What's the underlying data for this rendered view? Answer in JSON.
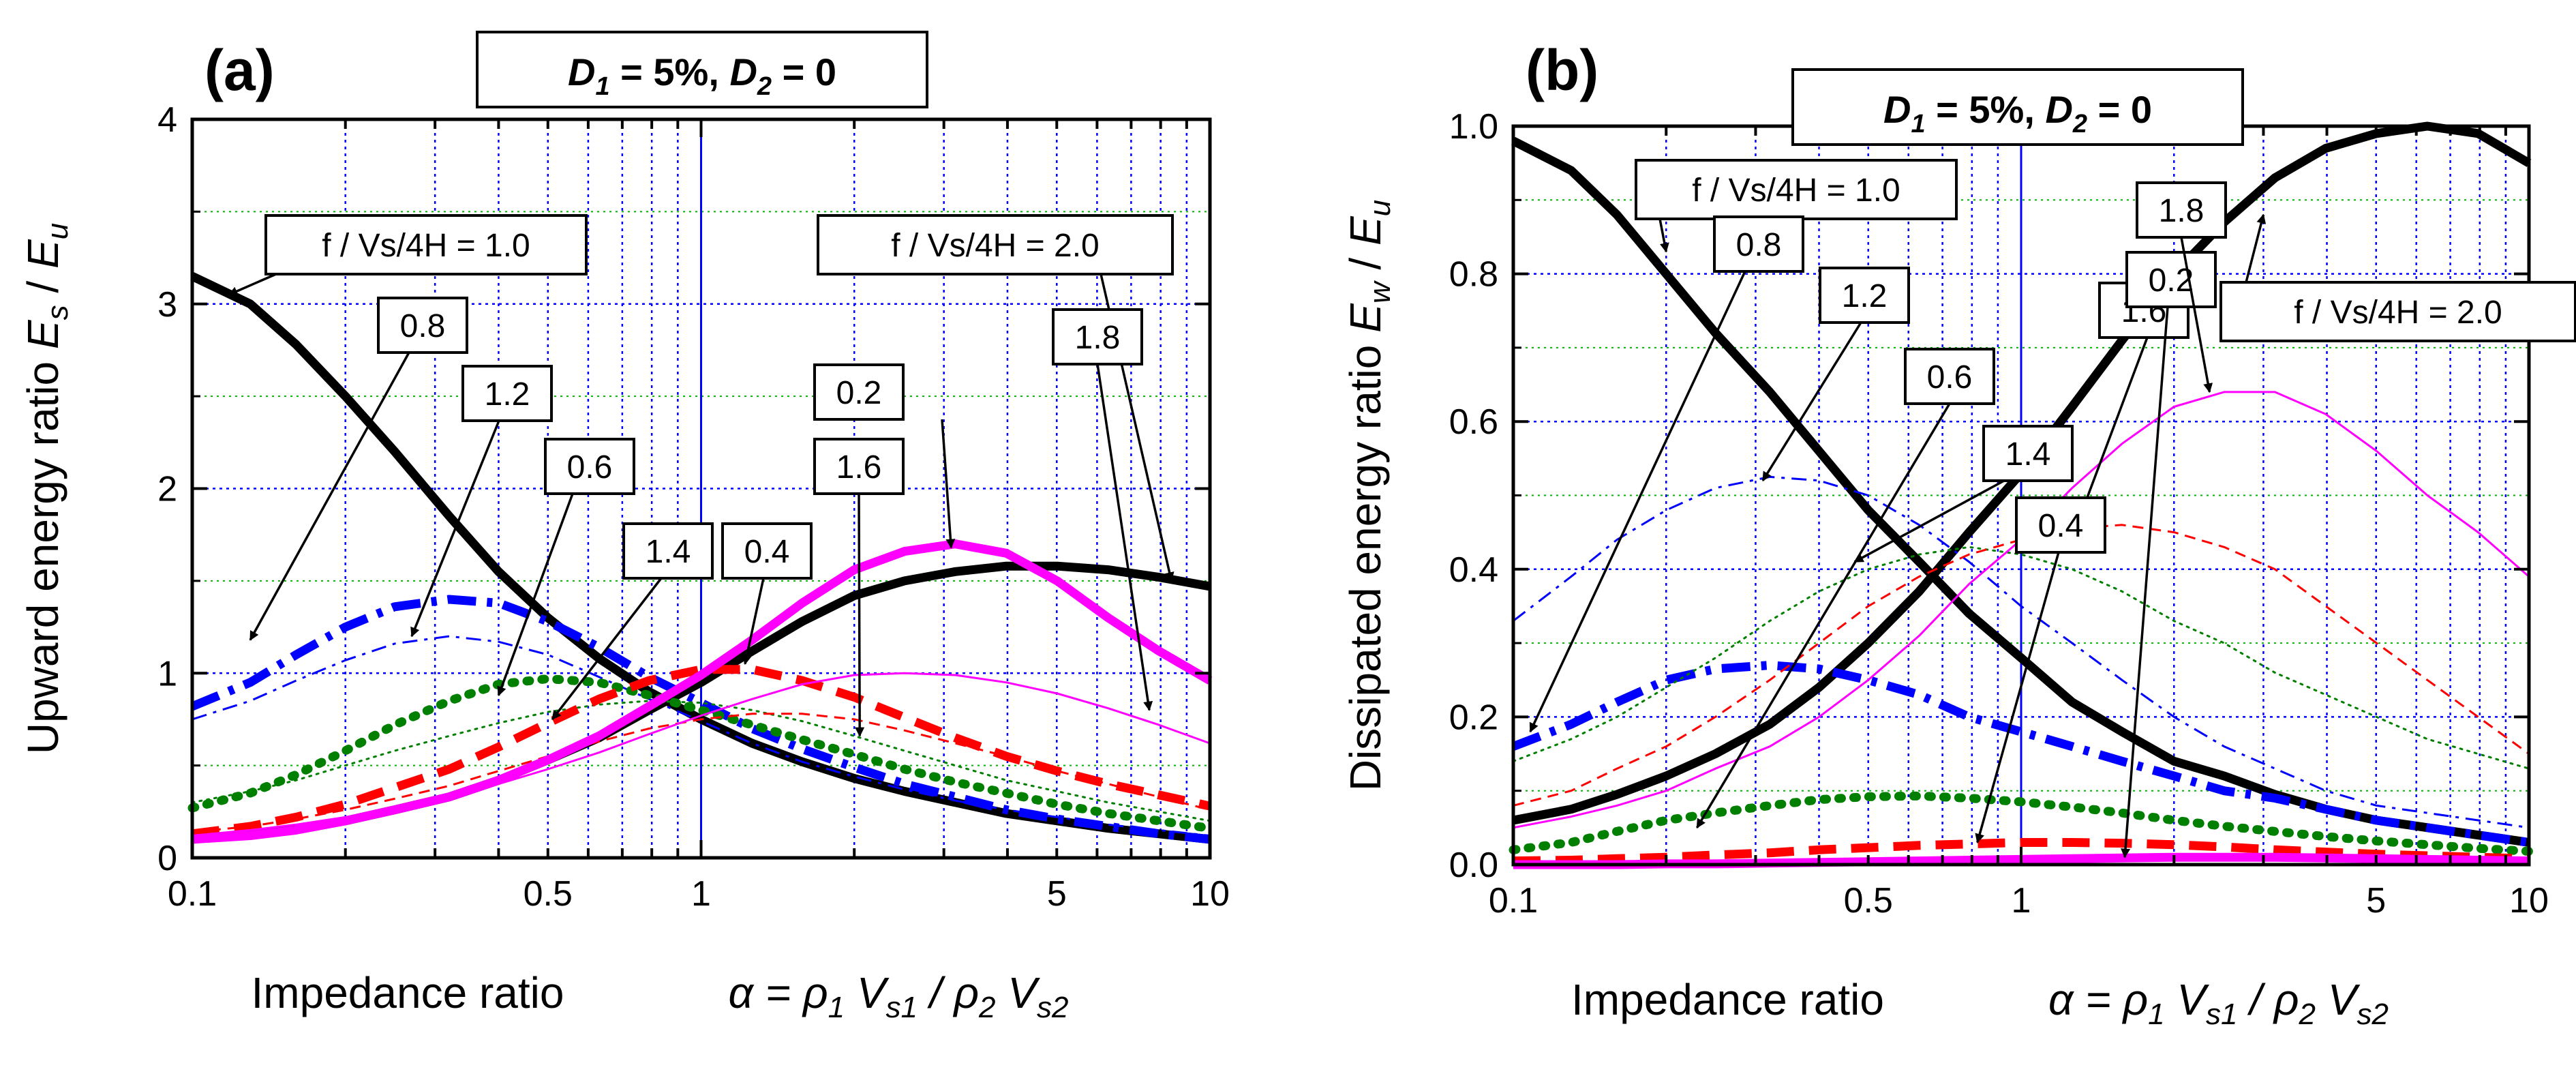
{
  "colors": {
    "black": "#000000",
    "blue": "#0000ff",
    "magenta": "#ff00ff",
    "red": "#ff0000",
    "green": "#007f00",
    "grid_major": "#0000ff",
    "grid_minor": "#00b400"
  },
  "chart_data": [
    {
      "type": "line",
      "panel_label": "(a)",
      "header_parts": [
        "D",
        "1",
        " = 5%, ",
        "D",
        "2",
        " = 0"
      ],
      "xlabel_text": "Impedance ratio",
      "xlabel_formula_parts": [
        "α",
        " = ",
        "ρ",
        "1",
        " V",
        "s1",
        " / ",
        "ρ",
        "2",
        " V",
        "s2"
      ],
      "ylabel_parts": [
        "Upward energy ratio  ",
        "E",
        "s",
        " / ",
        "E",
        "u"
      ],
      "xscale": "log",
      "xlim": [
        0.1,
        10
      ],
      "ylim": [
        0,
        4
      ],
      "xticks": [
        "0.1",
        "0.5",
        "1",
        "5",
        "10"
      ],
      "yticks": [
        "0",
        "1",
        "2",
        "3",
        "4"
      ],
      "x": [
        0.1,
        0.13,
        0.16,
        0.2,
        0.25,
        0.32,
        0.4,
        0.5,
        0.63,
        0.79,
        1.0,
        1.26,
        1.58,
        2.0,
        2.51,
        3.16,
        3.98,
        5.01,
        6.31,
        7.94,
        10.0
      ],
      "series": [
        {
          "name": "1.0",
          "color": "#000000",
          "style": "solid",
          "weight": "thick",
          "values": [
            3.15,
            3.0,
            2.78,
            2.5,
            2.2,
            1.85,
            1.55,
            1.3,
            1.08,
            0.9,
            0.75,
            0.62,
            0.52,
            0.43,
            0.36,
            0.3,
            0.24,
            0.2,
            0.16,
            0.13,
            0.1
          ]
        },
        {
          "name": "2.0",
          "color": "#000000",
          "style": "solid",
          "weight": "thick",
          "values": [
            0.1,
            0.13,
            0.16,
            0.2,
            0.26,
            0.33,
            0.42,
            0.53,
            0.65,
            0.8,
            0.95,
            1.12,
            1.28,
            1.42,
            1.5,
            1.55,
            1.58,
            1.58,
            1.56,
            1.52,
            1.47
          ]
        },
        {
          "name": "0.8",
          "color": "#0000ff",
          "style": "dashdot",
          "weight": "thick",
          "values": [
            0.82,
            0.95,
            1.1,
            1.25,
            1.36,
            1.4,
            1.38,
            1.28,
            1.14,
            0.98,
            0.84,
            0.7,
            0.59,
            0.49,
            0.4,
            0.33,
            0.26,
            0.21,
            0.17,
            0.13,
            0.1
          ]
        },
        {
          "name": "1.2",
          "color": "#0000ff",
          "style": "dashdot",
          "weight": "thin",
          "values": [
            0.75,
            0.85,
            0.96,
            1.07,
            1.16,
            1.2,
            1.17,
            1.1,
            0.98,
            0.86,
            0.74,
            0.62,
            0.52,
            0.44,
            0.37,
            0.31,
            0.26,
            0.22,
            0.18,
            0.15,
            0.12
          ]
        },
        {
          "name": "0.6",
          "color": "#007f00",
          "style": "dotted",
          "weight": "thick",
          "values": [
            0.27,
            0.35,
            0.45,
            0.58,
            0.72,
            0.85,
            0.94,
            0.97,
            0.95,
            0.88,
            0.8,
            0.72,
            0.64,
            0.56,
            0.48,
            0.41,
            0.35,
            0.29,
            0.24,
            0.2,
            0.16
          ]
        },
        {
          "name": "1.4",
          "color": "#007f00",
          "style": "dotted",
          "weight": "thin",
          "values": [
            0.3,
            0.36,
            0.42,
            0.5,
            0.58,
            0.66,
            0.73,
            0.79,
            0.83,
            0.85,
            0.84,
            0.8,
            0.74,
            0.66,
            0.58,
            0.5,
            0.42,
            0.36,
            0.3,
            0.25,
            0.2
          ]
        },
        {
          "name": "0.4",
          "color": "#ff0000",
          "style": "dashed",
          "weight": "thick",
          "values": [
            0.13,
            0.17,
            0.22,
            0.29,
            0.38,
            0.48,
            0.6,
            0.73,
            0.86,
            0.96,
            1.02,
            1.02,
            0.96,
            0.87,
            0.76,
            0.65,
            0.55,
            0.47,
            0.4,
            0.34,
            0.28
          ]
        },
        {
          "name": "1.6",
          "color": "#ff0000",
          "style": "dashed",
          "weight": "thin",
          "values": [
            0.14,
            0.17,
            0.21,
            0.26,
            0.32,
            0.39,
            0.47,
            0.55,
            0.63,
            0.7,
            0.75,
            0.78,
            0.78,
            0.75,
            0.69,
            0.62,
            0.55,
            0.47,
            0.4,
            0.33,
            0.26
          ]
        },
        {
          "name": "0.2",
          "color": "#ff00ff",
          "style": "solid",
          "weight": "thick",
          "values": [
            0.1,
            0.12,
            0.15,
            0.2,
            0.26,
            0.33,
            0.42,
            0.53,
            0.66,
            0.82,
            0.99,
            1.18,
            1.38,
            1.56,
            1.66,
            1.7,
            1.65,
            1.5,
            1.3,
            1.12,
            0.96
          ]
        },
        {
          "name": "1.8",
          "color": "#ff00ff",
          "style": "solid",
          "weight": "thin",
          "values": [
            0.12,
            0.15,
            0.18,
            0.22,
            0.27,
            0.33,
            0.4,
            0.48,
            0.57,
            0.67,
            0.77,
            0.86,
            0.94,
            0.99,
            1.0,
            0.99,
            0.95,
            0.89,
            0.81,
            0.72,
            0.62
          ]
        }
      ],
      "annotations": [
        {
          "text": "f / Vs/4H  = 1.0",
          "target": "1.0"
        },
        {
          "text": "f / Vs/4H  = 2.0",
          "target": "2.0"
        },
        {
          "text": "0.8",
          "target": "0.8"
        },
        {
          "text": "1.2",
          "target": "1.2"
        },
        {
          "text": "0.6",
          "target": "0.6"
        },
        {
          "text": "1.4",
          "target": "1.4"
        },
        {
          "text": "0.4",
          "target": "0.4"
        },
        {
          "text": "1.6",
          "target": "1.6"
        },
        {
          "text": "0.2",
          "target": "0.2"
        },
        {
          "text": "1.8",
          "target": "1.8"
        }
      ]
    },
    {
      "type": "line",
      "panel_label": "(b)",
      "header_parts": [
        "D",
        "1",
        " = 5%, ",
        "D",
        "2",
        " = 0"
      ],
      "xlabel_text": "Impedance ratio",
      "xlabel_formula_parts": [
        "α",
        " = ",
        "ρ",
        "1",
        " V",
        "s1",
        " / ",
        "ρ",
        "2",
        " V",
        "s2"
      ],
      "ylabel_parts": [
        "Dissipated energy ratio  ",
        "E",
        "w",
        " / ",
        "E",
        "u"
      ],
      "xscale": "log",
      "xlim": [
        0.1,
        10
      ],
      "ylim": [
        0,
        1.0
      ],
      "xticks": [
        "0.1",
        "0.5",
        "1",
        "5",
        "10"
      ],
      "yticks": [
        "0.0",
        "0.2",
        "0.4",
        "0.6",
        "0.8",
        "1.0"
      ],
      "x": [
        0.1,
        0.13,
        0.16,
        0.2,
        0.25,
        0.32,
        0.4,
        0.5,
        0.63,
        0.79,
        1.0,
        1.26,
        1.58,
        2.0,
        2.51,
        3.16,
        3.98,
        5.01,
        6.31,
        7.94,
        10.0
      ],
      "series": [
        {
          "name": "1.0",
          "color": "#000000",
          "style": "solid",
          "weight": "thick",
          "values": [
            0.98,
            0.94,
            0.88,
            0.8,
            0.72,
            0.64,
            0.56,
            0.48,
            0.41,
            0.34,
            0.28,
            0.22,
            0.18,
            0.14,
            0.12,
            0.095,
            0.075,
            0.06,
            0.05,
            0.04,
            0.03
          ]
        },
        {
          "name": "2.0",
          "color": "#000000",
          "style": "solid",
          "weight": "thick",
          "values": [
            0.06,
            0.075,
            0.095,
            0.12,
            0.15,
            0.19,
            0.24,
            0.3,
            0.37,
            0.45,
            0.53,
            0.62,
            0.71,
            0.8,
            0.87,
            0.93,
            0.97,
            0.99,
            1.0,
            0.99,
            0.95
          ]
        },
        {
          "name": "0.8",
          "color": "#0000ff",
          "style": "dashdot",
          "weight": "thick",
          "values": [
            0.16,
            0.19,
            0.22,
            0.25,
            0.265,
            0.27,
            0.265,
            0.25,
            0.23,
            0.2,
            0.18,
            0.16,
            0.14,
            0.12,
            0.1,
            0.09,
            0.075,
            0.06,
            0.05,
            0.04,
            0.03
          ]
        },
        {
          "name": "1.2",
          "color": "#0000ff",
          "style": "dashdot",
          "weight": "thin",
          "values": [
            0.33,
            0.39,
            0.44,
            0.48,
            0.51,
            0.525,
            0.52,
            0.5,
            0.46,
            0.41,
            0.35,
            0.3,
            0.25,
            0.2,
            0.16,
            0.13,
            0.1,
            0.08,
            0.07,
            0.06,
            0.05
          ]
        },
        {
          "name": "0.6",
          "color": "#007f00",
          "style": "dotted",
          "weight": "thick",
          "values": [
            0.02,
            0.03,
            0.045,
            0.06,
            0.07,
            0.08,
            0.088,
            0.092,
            0.093,
            0.09,
            0.085,
            0.078,
            0.07,
            0.06,
            0.052,
            0.045,
            0.038,
            0.032,
            0.027,
            0.022,
            0.018
          ]
        },
        {
          "name": "1.4",
          "color": "#007f00",
          "style": "dotted",
          "weight": "thin",
          "values": [
            0.14,
            0.17,
            0.2,
            0.24,
            0.28,
            0.33,
            0.37,
            0.4,
            0.42,
            0.43,
            0.42,
            0.4,
            0.37,
            0.33,
            0.3,
            0.26,
            0.23,
            0.2,
            0.17,
            0.15,
            0.13
          ]
        },
        {
          "name": "0.4",
          "color": "#ff0000",
          "style": "dashed",
          "weight": "thick",
          "values": [
            0.005,
            0.006,
            0.008,
            0.01,
            0.013,
            0.016,
            0.02,
            0.023,
            0.026,
            0.028,
            0.03,
            0.03,
            0.029,
            0.027,
            0.024,
            0.02,
            0.017,
            0.014,
            0.012,
            0.01,
            0.008
          ]
        },
        {
          "name": "1.6",
          "color": "#ff0000",
          "style": "dashed",
          "weight": "thin",
          "values": [
            0.08,
            0.1,
            0.13,
            0.16,
            0.2,
            0.25,
            0.3,
            0.35,
            0.39,
            0.42,
            0.44,
            0.455,
            0.46,
            0.45,
            0.43,
            0.4,
            0.35,
            0.3,
            0.25,
            0.2,
            0.15
          ]
        },
        {
          "name": "0.2",
          "color": "#ff00ff",
          "style": "solid",
          "weight": "thick",
          "values": [
            0.0,
            0.0,
            0.0,
            0.001,
            0.001,
            0.002,
            0.003,
            0.004,
            0.005,
            0.006,
            0.007,
            0.008,
            0.009,
            0.01,
            0.01,
            0.01,
            0.009,
            0.008,
            0.007,
            0.006,
            0.005
          ]
        },
        {
          "name": "1.8",
          "color": "#ff00ff",
          "style": "solid",
          "weight": "thin",
          "values": [
            0.05,
            0.065,
            0.08,
            0.1,
            0.13,
            0.16,
            0.2,
            0.25,
            0.31,
            0.38,
            0.44,
            0.51,
            0.57,
            0.62,
            0.64,
            0.64,
            0.61,
            0.56,
            0.5,
            0.45,
            0.39
          ]
        }
      ],
      "annotations": [
        {
          "text": "f / Vs/4H  = 1.0",
          "target": "1.0"
        },
        {
          "text": "f / Vs/4H  = 2.0",
          "target": "2.0"
        },
        {
          "text": "0.8",
          "target": "0.8"
        },
        {
          "text": "1.2",
          "target": "1.2"
        },
        {
          "text": "0.6",
          "target": "0.6"
        },
        {
          "text": "1.4",
          "target": "1.4"
        },
        {
          "text": "1.6",
          "target": "1.6"
        },
        {
          "text": "0.4",
          "target": "0.4"
        },
        {
          "text": "0.2",
          "target": "0.2"
        },
        {
          "text": "1.8",
          "target": "1.8"
        }
      ]
    }
  ]
}
